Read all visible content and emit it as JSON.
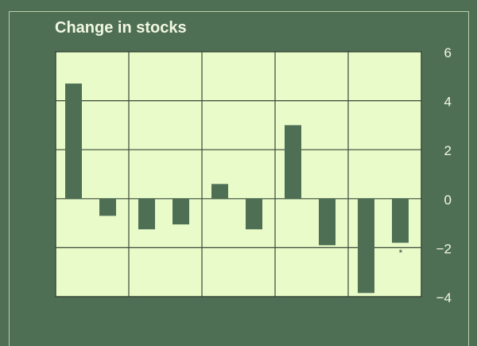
{
  "chart_data": {
    "type": "bar",
    "title": "Change in stocks",
    "xlabel": "",
    "ylabel": "",
    "ylim": [
      -4,
      6
    ],
    "yticks": [
      6,
      4,
      2,
      0,
      -2,
      -4
    ],
    "ytick_labels": [
      "6",
      "4",
      "2",
      "0",
      "−2",
      "−4"
    ],
    "grid": true,
    "groups": 5,
    "values": [
      4.7,
      -0.7,
      -1.25,
      -1.05,
      0.6,
      -1.25,
      3.0,
      -1.9,
      -3.85,
      -1.8
    ],
    "annotations": [
      {
        "bar_index": 9,
        "text": "*"
      }
    ],
    "colors": {
      "background": "#4f6f55",
      "plot": "#e8fbc9",
      "bar": "#4f6f55",
      "grid": "#3a4a3a",
      "text": "#f2f8e2"
    }
  }
}
